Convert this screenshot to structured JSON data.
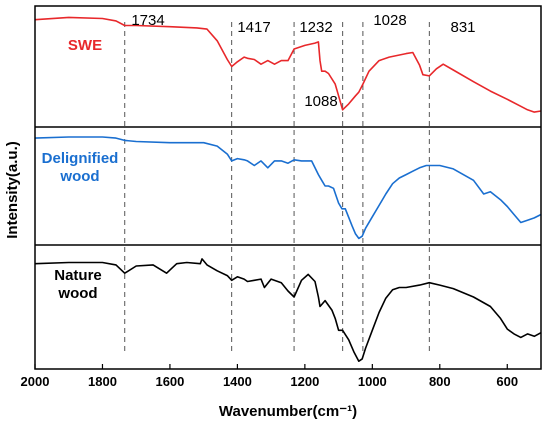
{
  "chart_data": {
    "type": "line",
    "xlabel": "Wavenumber(cm⁻¹)",
    "ylabel": "Intensity(a.u.)",
    "xlim": [
      2000,
      500
    ],
    "x_ticks": [
      "2000",
      "1800",
      "1600",
      "1400",
      "1200",
      "1000",
      "800",
      "600"
    ],
    "reference_lines": [
      {
        "x": 1734,
        "label": "1734"
      },
      {
        "x": 1417,
        "label": "1417"
      },
      {
        "x": 1232,
        "label": "1232"
      },
      {
        "x": 1088,
        "label": "1088"
      },
      {
        "x": 1028,
        "label": "1028"
      },
      {
        "x": 831,
        "label": "831"
      }
    ],
    "series": [
      {
        "name": "SWE",
        "color": "#e8282b",
        "x": [
          2000,
          1900,
          1800,
          1760,
          1734,
          1700,
          1600,
          1520,
          1490,
          1460,
          1430,
          1417,
          1400,
          1380,
          1370,
          1350,
          1330,
          1310,
          1290,
          1270,
          1250,
          1232,
          1200,
          1170,
          1160,
          1155,
          1150,
          1140,
          1130,
          1110,
          1100,
          1088,
          1070,
          1050,
          1040,
          1028,
          1010,
          980,
          950,
          900,
          880,
          860,
          850,
          831,
          810,
          790,
          760,
          700,
          650,
          600,
          560,
          540,
          520,
          500
        ],
        "values": [
          0.9,
          0.92,
          0.91,
          0.89,
          0.85,
          0.85,
          0.84,
          0.83,
          0.82,
          0.72,
          0.56,
          0.5,
          0.54,
          0.58,
          0.57,
          0.56,
          0.52,
          0.55,
          0.52,
          0.55,
          0.55,
          0.65,
          0.68,
          0.7,
          0.71,
          0.55,
          0.46,
          0.46,
          0.44,
          0.35,
          0.25,
          0.13,
          0.18,
          0.25,
          0.28,
          0.35,
          0.46,
          0.55,
          0.58,
          0.61,
          0.62,
          0.51,
          0.43,
          0.42,
          0.48,
          0.52,
          0.47,
          0.37,
          0.29,
          0.22,
          0.16,
          0.13,
          0.11,
          0.12
        ]
      },
      {
        "name": "Delignified\nwood",
        "color": "#1a6fd0",
        "x": [
          2000,
          1900,
          1800,
          1760,
          1734,
          1700,
          1600,
          1500,
          1460,
          1430,
          1417,
          1400,
          1380,
          1370,
          1350,
          1330,
          1310,
          1290,
          1270,
          1250,
          1232,
          1210,
          1180,
          1160,
          1150,
          1140,
          1130,
          1115,
          1100,
          1090,
          1080,
          1060,
          1050,
          1040,
          1030,
          1020,
          1000,
          980,
          960,
          940,
          920,
          900,
          880,
          860,
          840,
          800,
          760,
          700,
          670,
          650,
          620,
          600,
          580,
          560,
          540,
          520,
          500
        ],
        "values": [
          0.92,
          0.93,
          0.93,
          0.92,
          0.9,
          0.89,
          0.88,
          0.88,
          0.85,
          0.78,
          0.72,
          0.74,
          0.73,
          0.72,
          0.68,
          0.72,
          0.66,
          0.72,
          0.72,
          0.7,
          0.73,
          0.72,
          0.72,
          0.6,
          0.55,
          0.5,
          0.5,
          0.48,
          0.35,
          0.3,
          0.3,
          0.15,
          0.08,
          0.04,
          0.06,
          0.13,
          0.23,
          0.33,
          0.43,
          0.52,
          0.57,
          0.6,
          0.63,
          0.66,
          0.68,
          0.68,
          0.65,
          0.55,
          0.43,
          0.45,
          0.38,
          0.32,
          0.25,
          0.18,
          0.2,
          0.22,
          0.25
        ]
      },
      {
        "name": "Nature\nwood",
        "color": "#000000",
        "x": [
          2000,
          1900,
          1800,
          1760,
          1734,
          1700,
          1650,
          1610,
          1595,
          1580,
          1550,
          1510,
          1505,
          1490,
          1460,
          1430,
          1417,
          1400,
          1380,
          1370,
          1350,
          1330,
          1320,
          1300,
          1270,
          1250,
          1232,
          1210,
          1190,
          1170,
          1160,
          1155,
          1140,
          1120,
          1110,
          1100,
          1088,
          1070,
          1055,
          1040,
          1030,
          1020,
          1000,
          980,
          960,
          940,
          920,
          900,
          860,
          831,
          800,
          760,
          700,
          650,
          620,
          600,
          580,
          560,
          540,
          520,
          500
        ],
        "values": [
          0.86,
          0.87,
          0.87,
          0.85,
          0.78,
          0.84,
          0.85,
          0.78,
          0.82,
          0.86,
          0.87,
          0.86,
          0.9,
          0.85,
          0.8,
          0.76,
          0.72,
          0.75,
          0.73,
          0.71,
          0.72,
          0.73,
          0.66,
          0.73,
          0.7,
          0.63,
          0.58,
          0.72,
          0.77,
          0.71,
          0.58,
          0.5,
          0.55,
          0.47,
          0.4,
          0.3,
          0.3,
          0.22,
          0.12,
          0.04,
          0.06,
          0.15,
          0.3,
          0.45,
          0.57,
          0.64,
          0.66,
          0.66,
          0.68,
          0.7,
          0.68,
          0.65,
          0.58,
          0.5,
          0.4,
          0.31,
          0.27,
          0.24,
          0.27,
          0.25,
          0.28
        ]
      }
    ]
  }
}
